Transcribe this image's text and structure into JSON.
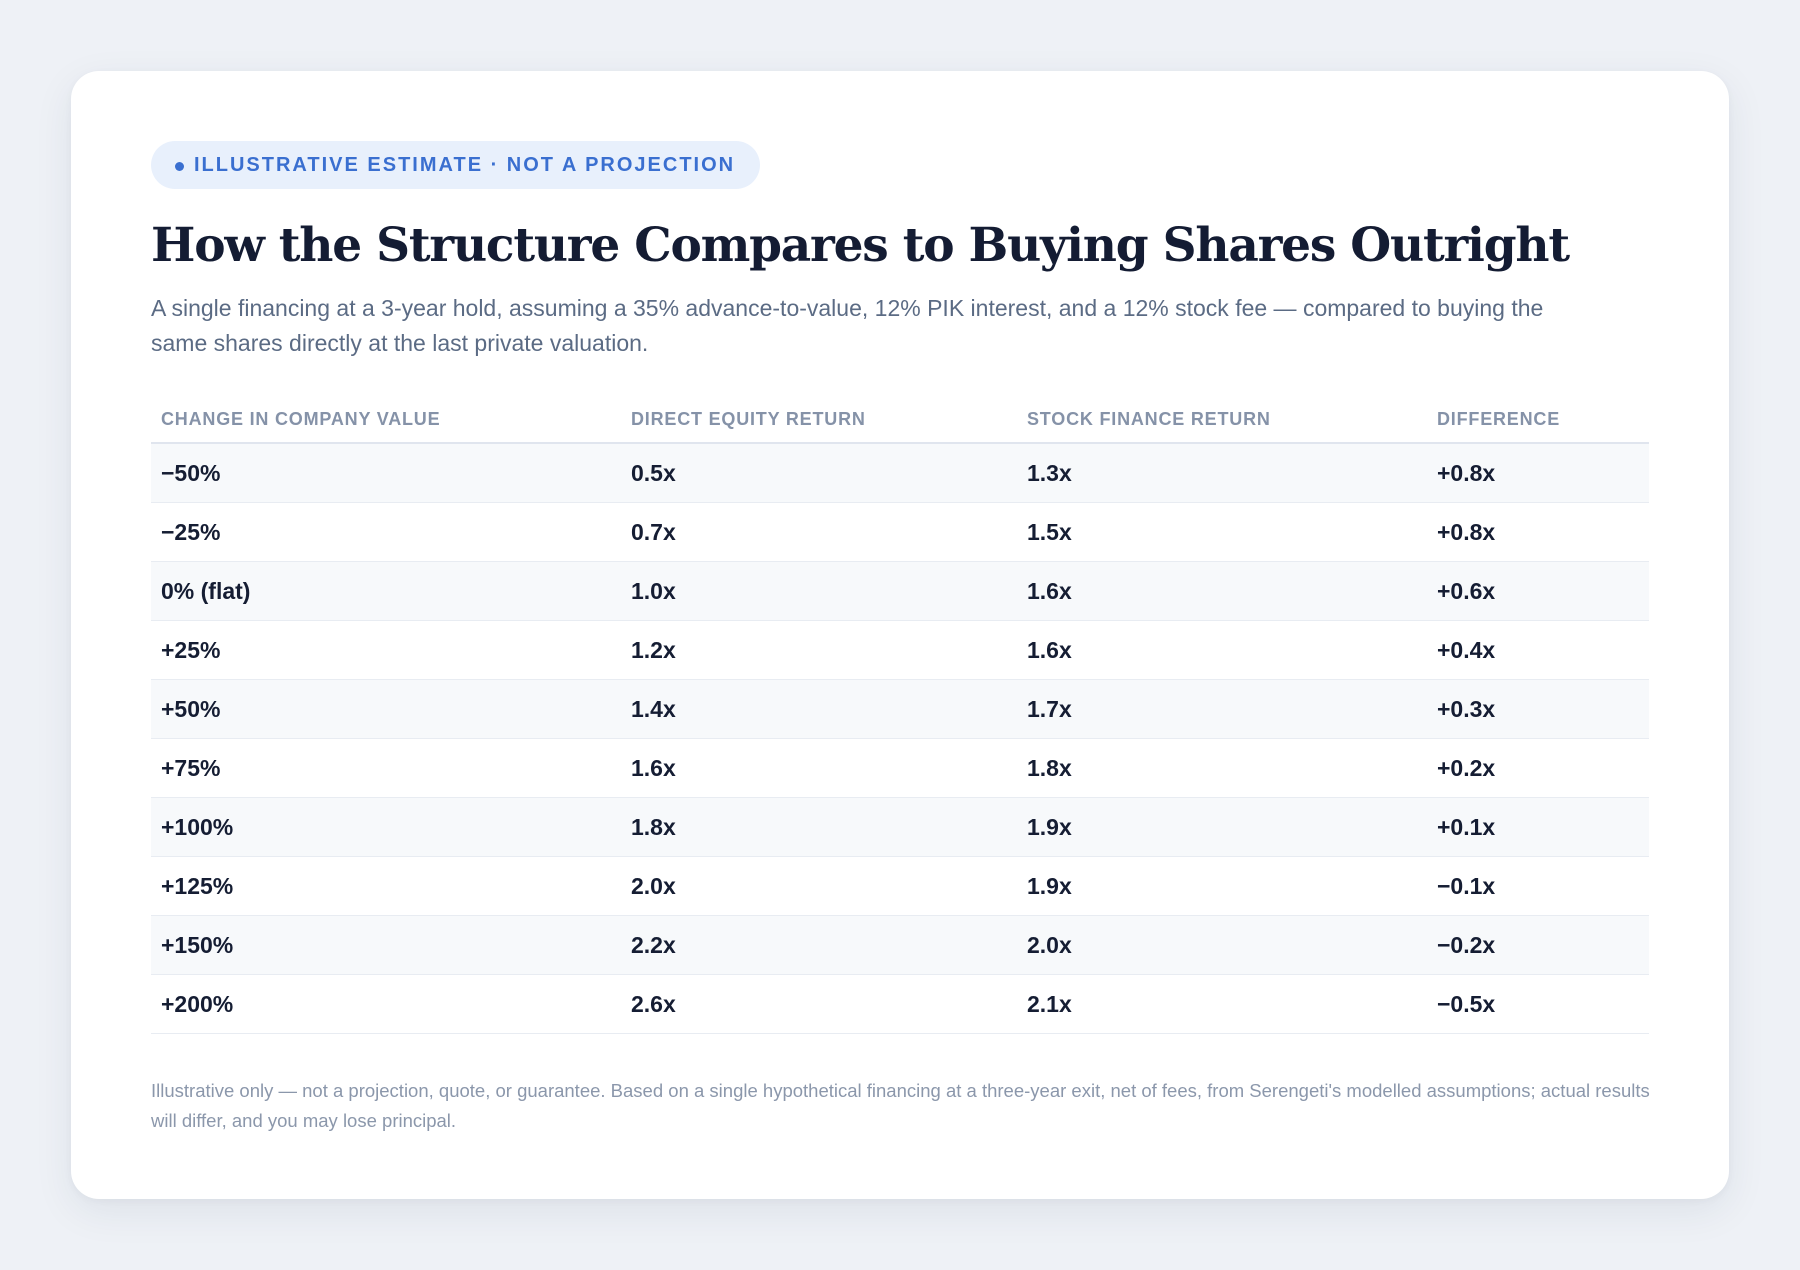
{
  "badge": {
    "label": "ILLUSTRATIVE ESTIMATE · NOT A PROJECTION"
  },
  "title": "How the Structure Compares to Buying Shares Outright",
  "subtitle": "A single financing at a 3-year hold, assuming a 35% advance-to-value, 12% PIK interest, and a 12% stock fee — compared to buying the same shares directly at the last private valuation.",
  "table": {
    "headers": [
      "CHANGE IN COMPANY VALUE",
      "DIRECT EQUITY RETURN",
      "STOCK FINANCE RETURN",
      "DIFFERENCE"
    ],
    "rows": [
      [
        "−50%",
        "0.5x",
        "1.3x",
        "+0.8x"
      ],
      [
        "−25%",
        "0.7x",
        "1.5x",
        "+0.8x"
      ],
      [
        "0% (flat)",
        "1.0x",
        "1.6x",
        "+0.6x"
      ],
      [
        "+25%",
        "1.2x",
        "1.6x",
        "+0.4x"
      ],
      [
        "+50%",
        "1.4x",
        "1.7x",
        "+0.3x"
      ],
      [
        "+75%",
        "1.6x",
        "1.8x",
        "+0.2x"
      ],
      [
        "+100%",
        "1.8x",
        "1.9x",
        "+0.1x"
      ],
      [
        "+125%",
        "2.0x",
        "1.9x",
        "−0.1x"
      ],
      [
        "+150%",
        "2.2x",
        "2.0x",
        "−0.2x"
      ],
      [
        "+200%",
        "2.6x",
        "2.1x",
        "−0.5x"
      ]
    ]
  },
  "footnote": "Illustrative only — not a projection, quote, or guarantee. Based on a single hypothetical financing at a three-year exit, net of fees, from Serengeti's modelled assumptions; actual results will differ, and you may lose principal.",
  "colors": {
    "accent": "#3a6fd0",
    "badge_bg": "#e8f0fc",
    "title": "#141c33",
    "muted": "#5b6b84",
    "page_bg": "#eef1f6"
  }
}
